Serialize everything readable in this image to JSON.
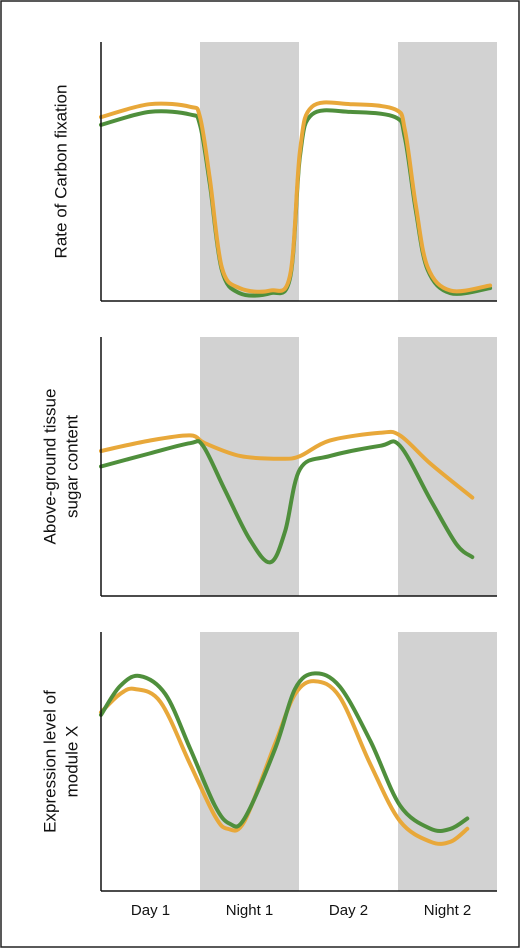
{
  "chart_data": [
    {
      "type": "line",
      "ylabel": [
        "Rate of Carbon fixation"
      ],
      "xlim": [
        0,
        4
      ],
      "ylim": [
        0,
        100
      ],
      "shaded_periods": [
        1,
        3
      ],
      "series": [
        {
          "color": "#4f8f3c",
          "x": [
            0,
            0.49,
            0.9,
            1.0,
            1.1,
            1.22,
            1.4,
            1.71,
            1.91,
            2.01,
            2.13,
            2.52,
            2.97,
            3.07,
            3.18,
            3.3,
            3.53,
            3.93
          ],
          "values": [
            68,
            73,
            72,
            68,
            45,
            12,
            3,
            3,
            9,
            56,
            72,
            73,
            71,
            63,
            35,
            12,
            3,
            5
          ]
        },
        {
          "color": "#e8a83a",
          "x": [
            0,
            0.49,
            0.9,
            1.0,
            1.1,
            1.22,
            1.4,
            1.71,
            1.91,
            2.01,
            2.13,
            2.52,
            2.97,
            3.07,
            3.18,
            3.3,
            3.53,
            3.93
          ],
          "values": [
            71,
            76,
            75,
            71,
            47,
            13,
            5,
            4,
            10,
            58,
            75,
            76,
            74,
            66,
            37,
            13,
            4,
            6
          ]
        }
      ]
    },
    {
      "type": "line",
      "ylabel": [
        "Above-ground tissue",
        "sugar content"
      ],
      "xlim": [
        0,
        4
      ],
      "ylim": [
        0,
        100
      ],
      "shaded_periods": [
        1,
        3
      ],
      "series": [
        {
          "color": "#e8a83a",
          "x": [
            0,
            0.49,
            0.9,
            1.05,
            1.41,
            1.82,
            2.01,
            2.31,
            2.82,
            3.02,
            3.33,
            3.75
          ],
          "values": [
            56,
            60,
            62,
            59,
            54,
            53,
            54,
            60,
            63,
            62,
            51,
            38
          ]
        },
        {
          "color": "#4f8f3c",
          "x": [
            0,
            0.49,
            0.9,
            1.03,
            1.25,
            1.5,
            1.71,
            1.86,
            2.01,
            2.31,
            2.82,
            3.02,
            3.33,
            3.59,
            3.75
          ],
          "values": [
            50,
            55,
            59,
            58,
            41,
            22,
            13,
            25,
            49,
            54,
            58,
            58,
            37,
            20,
            15
          ]
        }
      ]
    },
    {
      "type": "line",
      "ylabel": [
        "Expression level of",
        "module X"
      ],
      "xlim": [
        0,
        4
      ],
      "ylim": [
        0,
        100
      ],
      "shaded_periods": [
        1,
        3
      ],
      "categories": [
        "Day 1",
        "Night 1",
        "Day 2",
        "Night 2"
      ],
      "series": [
        {
          "color": "#e8a83a",
          "x": [
            0,
            0.19,
            0.34,
            0.6,
            0.9,
            1.15,
            1.28,
            1.45,
            1.76,
            1.96,
            2.16,
            2.41,
            2.72,
            3.02,
            3.33,
            3.53,
            3.7
          ],
          "values": [
            69,
            76,
            78,
            73,
            49,
            29,
            24,
            27,
            57,
            76,
            81,
            75,
            49,
            27,
            19,
            19,
            24
          ]
        },
        {
          "color": "#4f8f3c",
          "x": [
            0,
            0.19,
            0.39,
            0.65,
            0.9,
            1.15,
            1.3,
            1.45,
            1.76,
            1.96,
            2.16,
            2.41,
            2.72,
            3.02,
            3.33,
            3.53,
            3.7
          ],
          "values": [
            68,
            79,
            83,
            76,
            55,
            33,
            26,
            28,
            55,
            78,
            84,
            79,
            58,
            33,
            24,
            24,
            28
          ]
        }
      ]
    }
  ]
}
